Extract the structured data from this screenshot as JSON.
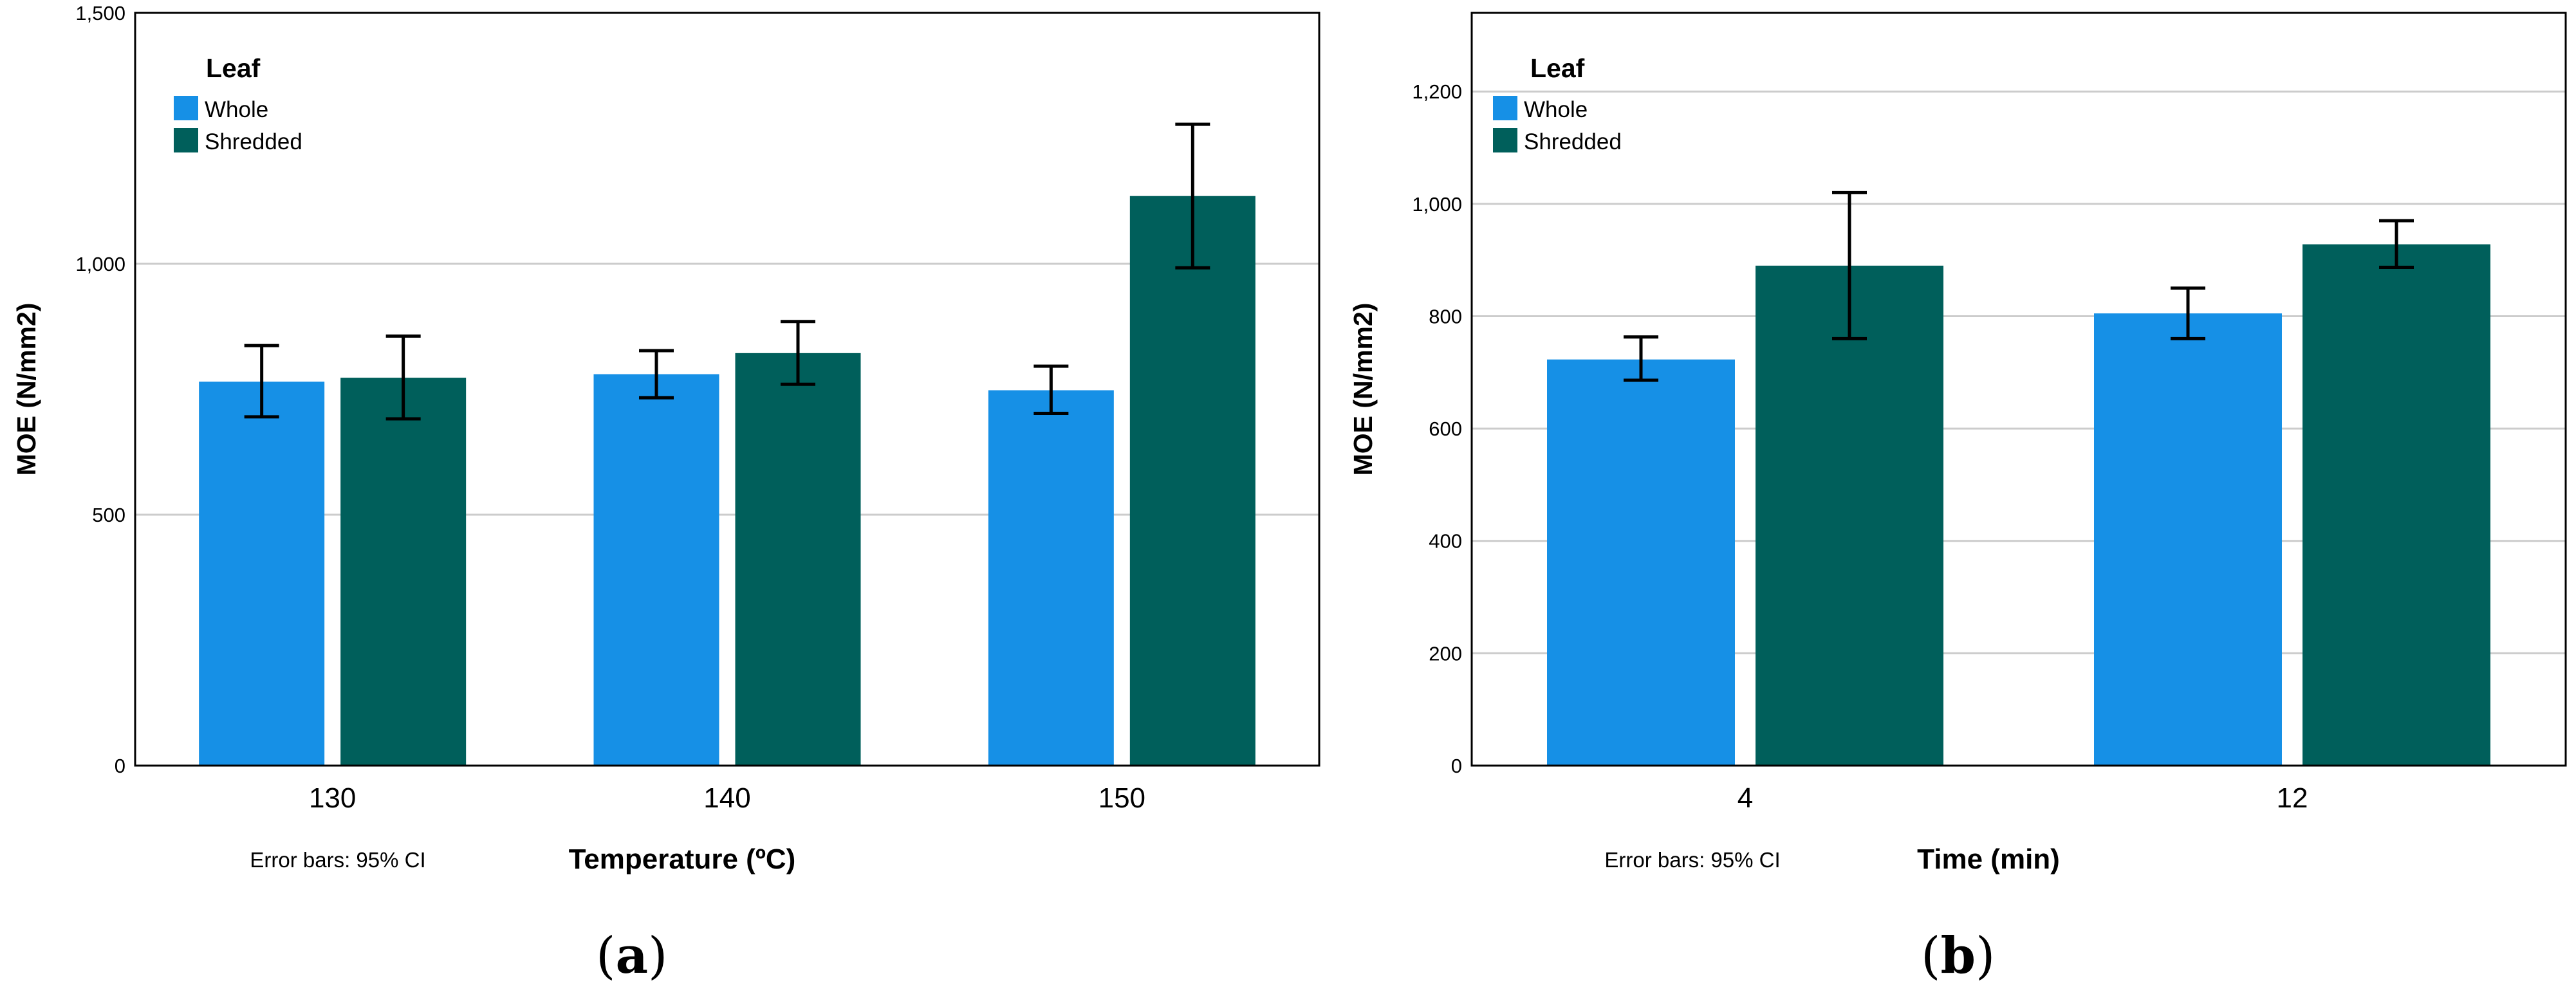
{
  "colors": {
    "whole": "#1690E6",
    "shredded": "#005F5B",
    "gridline": "#CCCCCC",
    "frame": "#000000"
  },
  "chart_data": [
    {
      "type": "bar",
      "panel_label": "a",
      "legend_title": "Leaf",
      "legend": [
        "Whole",
        "Shredded"
      ],
      "xlabel": "Temperature (ºC)",
      "ylabel": "MOE (N/mm2)",
      "footnote": "Error bars: 95% CI",
      "categories": [
        "130",
        "140",
        "150"
      ],
      "ylim": [
        0,
        1500
      ],
      "yticks": [
        0,
        500,
        1000,
        1500
      ],
      "ytick_labels": [
        "0",
        "500",
        "1,000",
        "1,500"
      ],
      "series": [
        {
          "name": "Whole",
          "values": [
            765,
            780,
            748
          ],
          "ci_low": [
            695,
            733,
            702
          ],
          "ci_high": [
            837,
            827,
            796
          ]
        },
        {
          "name": "Shredded",
          "values": [
            773,
            822,
            1135
          ],
          "ci_low": [
            691,
            760,
            992
          ],
          "ci_high": [
            856,
            885,
            1278
          ]
        }
      ]
    },
    {
      "type": "bar",
      "panel_label": "b",
      "legend_title": "Leaf",
      "legend": [
        "Whole",
        "Shredded"
      ],
      "xlabel": "Time (min)",
      "ylabel": "MOE (N/mm2)",
      "footnote": "Error bars: 95% CI",
      "categories": [
        "4",
        "12"
      ],
      "ylim": [
        0,
        1340
      ],
      "yticks": [
        0,
        200,
        400,
        600,
        800,
        1000,
        1200
      ],
      "ytick_labels": [
        "0",
        "200",
        "400",
        "600",
        "800",
        "1,000",
        "1,200"
      ],
      "series": [
        {
          "name": "Whole",
          "values": [
            723,
            805
          ],
          "ci_low": [
            686,
            760
          ],
          "ci_high": [
            763,
            850
          ]
        },
        {
          "name": "Shredded",
          "values": [
            890,
            928
          ],
          "ci_low": [
            760,
            887
          ],
          "ci_high": [
            1020,
            970
          ]
        }
      ]
    }
  ]
}
